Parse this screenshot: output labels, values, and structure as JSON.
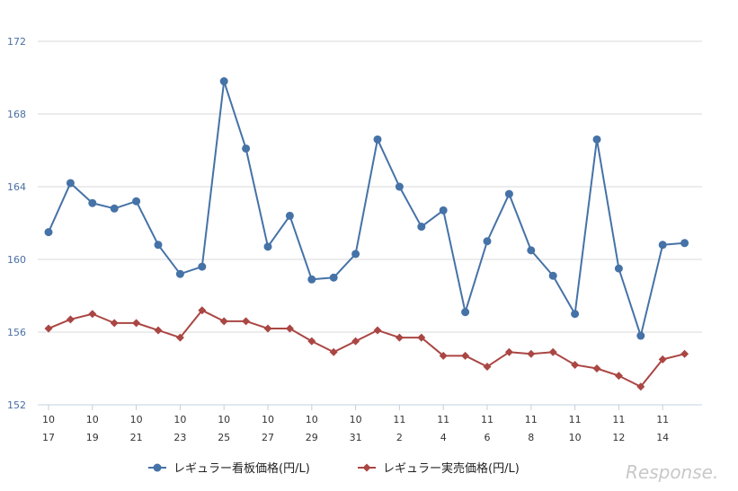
{
  "chart_data": {
    "type": "line",
    "title": "",
    "xlabel": "",
    "ylabel": "",
    "ylim": [
      152,
      172
    ],
    "yticks": [
      152,
      156,
      160,
      164,
      168,
      172
    ],
    "grid": true,
    "categories": [
      "10/17",
      "10/18",
      "10/19",
      "10/20",
      "10/21",
      "10/22",
      "10/23",
      "10/24",
      "10/25",
      "10/26",
      "10/27",
      "10/28",
      "10/29",
      "10/30",
      "10/31",
      "11/1",
      "11/2",
      "11/3",
      "11/4",
      "11/5",
      "11/6",
      "11/7",
      "11/8",
      "11/9",
      "11/10",
      "11/11",
      "11/12",
      "11/13",
      "11/14",
      "11/15"
    ],
    "x_tick_labels": [
      {
        "month": "10",
        "day": "17"
      },
      {
        "month": "10",
        "day": "19"
      },
      {
        "month": "10",
        "day": "21"
      },
      {
        "month": "10",
        "day": "23"
      },
      {
        "month": "10",
        "day": "25"
      },
      {
        "month": "10",
        "day": "27"
      },
      {
        "month": "10",
        "day": "29"
      },
      {
        "month": "10",
        "day": "31"
      },
      {
        "month": "11",
        "day": "2"
      },
      {
        "month": "11",
        "day": "4"
      },
      {
        "month": "11",
        "day": "6"
      },
      {
        "month": "11",
        "day": "8"
      },
      {
        "month": "11",
        "day": "10"
      },
      {
        "month": "11",
        "day": "12"
      },
      {
        "month": "11",
        "day": "14"
      }
    ],
    "series": [
      {
        "name": "レギュラー看板価格(円/L)",
        "color": "#4572a7",
        "marker": "circle",
        "values": [
          161.5,
          164.2,
          163.1,
          162.8,
          163.2,
          160.8,
          159.2,
          159.6,
          169.8,
          166.1,
          160.7,
          162.4,
          158.9,
          159.0,
          160.3,
          166.6,
          164.0,
          161.8,
          162.7,
          157.1,
          161.0,
          163.6,
          160.5,
          159.1,
          157.0,
          166.6,
          159.5,
          155.8,
          160.8,
          160.9
        ]
      },
      {
        "name": "レギュラー実売価格(円/L)",
        "color": "#aa4643",
        "marker": "diamond",
        "values": [
          156.2,
          156.7,
          157.0,
          156.5,
          156.5,
          156.1,
          155.7,
          157.2,
          156.6,
          156.6,
          156.2,
          156.2,
          155.5,
          154.9,
          155.5,
          156.1,
          155.7,
          155.7,
          154.7,
          154.7,
          154.1,
          154.9,
          154.8,
          154.9,
          154.2,
          154.0,
          153.6,
          153.0,
          154.5,
          154.8
        ]
      }
    ]
  },
  "watermark": "Response."
}
